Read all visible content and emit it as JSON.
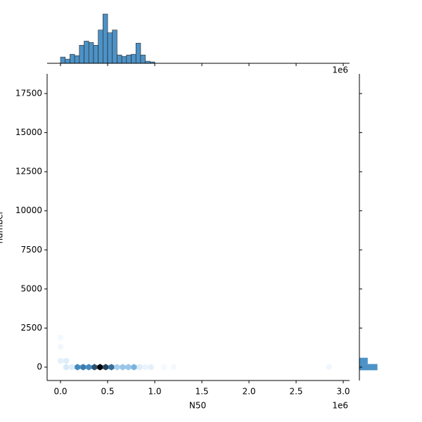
{
  "chart_data": {
    "type": "hexbin",
    "xlabel": "N50",
    "ylabel": "number",
    "x_offset_label": "1e6",
    "top_offset_label": "1e6",
    "xlim": [
      -0.142,
      3.067
    ],
    "xticks": [
      {
        "value": 0,
        "label": "0.0"
      },
      0.5,
      {
        "value": 1,
        "label": "1.0"
      },
      1.5,
      {
        "value": 2,
        "label": "2.0"
      },
      2.5,
      {
        "value": 3,
        "label": "3.0"
      }
    ],
    "ylim": [
      -855,
      18760
    ],
    "yticks": [
      0,
      2500,
      5000,
      7500,
      10000,
      12500,
      15000,
      17500
    ],
    "colors": [
      "#f7fbff",
      "#4a98d4",
      "#000000"
    ],
    "hexbins": [
      {
        "x": 0.0,
        "y": 1900,
        "count": 1
      },
      {
        "x": 0.0,
        "y": 1300,
        "count": 2
      },
      {
        "x": 0.0,
        "y": 400,
        "count": 6
      },
      {
        "x": 0.06,
        "y": 400,
        "count": 8
      },
      {
        "x": 0.06,
        "y": 0,
        "count": 10
      },
      {
        "x": 0.12,
        "y": 0,
        "count": 8
      },
      {
        "x": 0.18,
        "y": 0,
        "count": 60
      },
      {
        "x": 0.24,
        "y": 0,
        "count": 65
      },
      {
        "x": 0.3,
        "y": 0,
        "count": 60
      },
      {
        "x": 0.36,
        "y": 0,
        "count": 80
      },
      {
        "x": 0.42,
        "y": 0,
        "count": 110
      },
      {
        "x": 0.48,
        "y": 0,
        "count": 85
      },
      {
        "x": 0.54,
        "y": 0,
        "count": 70
      },
      {
        "x": 0.6,
        "y": 0,
        "count": 25
      },
      {
        "x": 0.66,
        "y": 0,
        "count": 30
      },
      {
        "x": 0.72,
        "y": 0,
        "count": 30
      },
      {
        "x": 0.78,
        "y": 0,
        "count": 40
      },
      {
        "x": 0.84,
        "y": 0,
        "count": 8
      },
      {
        "x": 0.9,
        "y": 0,
        "count": 4
      },
      {
        "x": 0.96,
        "y": 0,
        "count": 6
      },
      {
        "x": 1.1,
        "y": 0,
        "count": 1
      },
      {
        "x": 1.2,
        "y": 0,
        "count": 1
      },
      {
        "x": 2.85,
        "y": 0,
        "count": 2
      }
    ],
    "top_hist": {
      "color": "#3a86c0",
      "bins": [
        0,
        0.05,
        0.1,
        0.15,
        0.2,
        0.25,
        0.3,
        0.35,
        0.4,
        0.45,
        0.5,
        0.55,
        0.6,
        0.65,
        0.7,
        0.75,
        0.8,
        0.85,
        0.9,
        0.95,
        1.0
      ],
      "counts": [
        9,
        6,
        13,
        11,
        26,
        32,
        30,
        26,
        48,
        71,
        44,
        48,
        12,
        10,
        12,
        13,
        29,
        12,
        3,
        2
      ],
      "ylim": [
        0,
        72
      ]
    },
    "right_hist": {
      "color": "#3a86c0",
      "bins": [
        -200,
        200,
        600
      ],
      "counts": [
        26,
        12
      ],
      "xlim": [
        0,
        72
      ]
    }
  }
}
